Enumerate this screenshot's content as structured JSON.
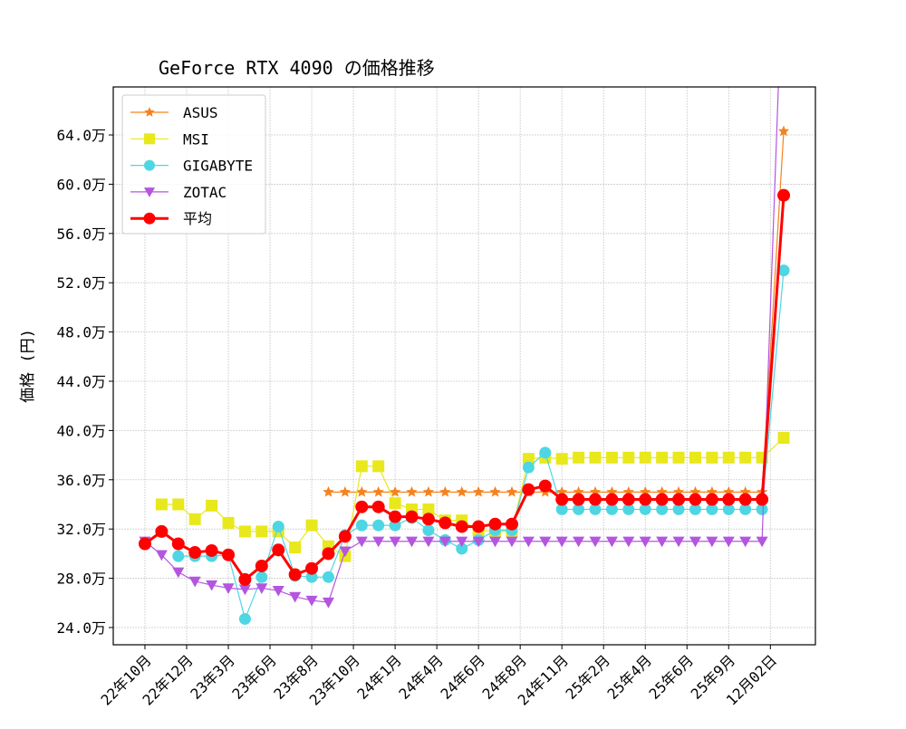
{
  "chart_data": {
    "type": "line",
    "title": "GeForce RTX 4090 の価格推移",
    "xlabel": "",
    "ylabel": "価格 (円)",
    "ylim": [
      22.6,
      67.9
    ],
    "xlim": [
      -1.9,
      40.2
    ],
    "grid": true,
    "legend_position": "top-left",
    "y_ticks": [
      24,
      28,
      32,
      36,
      40,
      44,
      48,
      52,
      56,
      60,
      64
    ],
    "y_tick_labels": [
      "24.0万",
      "28.0万",
      "32.0万",
      "36.0万",
      "40.0万",
      "44.0万",
      "48.0万",
      "52.0万",
      "56.0万",
      "60.0万",
      "64.0万"
    ],
    "x_ticks": [
      0,
      2.5,
      5,
      7.5,
      10,
      12.5,
      15,
      17.5,
      20,
      22.5,
      25,
      27.5,
      30,
      32.5,
      35,
      37.5
    ],
    "x_tick_labels": [
      "22年10月",
      "22年12月",
      "23年3月",
      "23年6月",
      "23年8月",
      "23年10月",
      "24年1月",
      "24年4月",
      "24年6月",
      "24年8月",
      "24年11月",
      "25年2月",
      "25年4月",
      "25年6月",
      "25年9月",
      "12月02日"
    ],
    "x": [
      0,
      1,
      2,
      3,
      4,
      5,
      6,
      7,
      8,
      9,
      10,
      11,
      12,
      13,
      14,
      15,
      16,
      17,
      18,
      19,
      20,
      21,
      22,
      23,
      24,
      25,
      26,
      27,
      28,
      29,
      30,
      31,
      32,
      33,
      34,
      35,
      36,
      37,
      38.3
    ],
    "series": [
      {
        "name": "ASUS",
        "color": "#f5821f",
        "marker": "star",
        "width": 1.2,
        "values": [
          null,
          null,
          null,
          null,
          null,
          null,
          null,
          null,
          null,
          null,
          null,
          35.0,
          35.0,
          35.0,
          35.0,
          35.0,
          35.0,
          35.0,
          35.0,
          35.0,
          35.0,
          35.0,
          35.0,
          35.0,
          35.0,
          35.0,
          35.0,
          35.0,
          35.0,
          35.0,
          35.0,
          35.0,
          35.0,
          35.0,
          35.0,
          35.0,
          35.0,
          35.0,
          64.3
        ]
      },
      {
        "name": "MSI",
        "color": "#e8e81c",
        "marker": "square",
        "width": 1.2,
        "values": [
          null,
          34.0,
          34.0,
          32.8,
          33.9,
          32.5,
          31.8,
          31.8,
          31.8,
          30.5,
          32.3,
          30.6,
          29.8,
          37.1,
          37.1,
          34.1,
          33.6,
          33.6,
          32.7,
          32.7,
          31.9,
          31.8,
          31.8,
          37.7,
          37.8,
          37.7,
          37.8,
          37.8,
          37.8,
          37.8,
          37.8,
          37.8,
          37.8,
          37.8,
          37.8,
          37.8,
          37.8,
          37.8,
          39.4
        ]
      },
      {
        "name": "GIGABYTE",
        "color": "#4fd6e4",
        "marker": "circle",
        "width": 1.2,
        "values": [
          null,
          null,
          29.8,
          29.8,
          29.8,
          29.9,
          24.7,
          28.1,
          32.2,
          28.2,
          28.1,
          28.1,
          31.5,
          32.3,
          32.3,
          32.3,
          32.9,
          31.9,
          31.1,
          30.4,
          31.1,
          31.9,
          31.9,
          37.0,
          38.2,
          33.6,
          33.6,
          33.6,
          33.6,
          33.6,
          33.6,
          33.6,
          33.6,
          33.6,
          33.6,
          33.6,
          33.6,
          33.6,
          53.0
        ]
      },
      {
        "name": "ZOTAC",
        "color": "#b455e0",
        "marker": "triangle-down",
        "width": 1.2,
        "values": [
          31.0,
          29.9,
          28.5,
          27.75,
          27.45,
          27.2,
          27.1,
          27.2,
          27.0,
          26.5,
          26.2,
          26.05,
          30.2,
          31.0,
          31.0,
          31.0,
          31.0,
          31.0,
          31.0,
          31.0,
          31.0,
          31.0,
          31.0,
          31.0,
          31.0,
          31.0,
          31.0,
          31.0,
          31.0,
          31.0,
          31.0,
          31.0,
          31.0,
          31.0,
          31.0,
          31.0,
          31.0,
          31.0,
          80.0
        ]
      },
      {
        "name": "平均",
        "color": "#ff0000",
        "marker": "circle",
        "width": 3,
        "values": [
          30.8,
          31.8,
          30.8,
          30.1,
          30.25,
          29.9,
          27.9,
          29.0,
          30.3,
          28.3,
          28.8,
          30.0,
          31.4,
          33.8,
          33.8,
          33.0,
          33.0,
          32.8,
          32.5,
          32.2,
          32.2,
          32.4,
          32.4,
          35.2,
          35.5,
          34.4,
          34.4,
          34.4,
          34.4,
          34.4,
          34.4,
          34.4,
          34.4,
          34.4,
          34.4,
          34.4,
          34.4,
          34.4,
          59.1
        ]
      }
    ]
  }
}
